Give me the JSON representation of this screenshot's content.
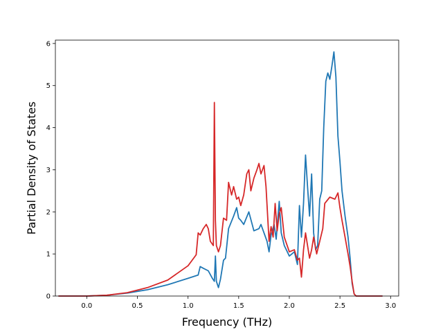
{
  "chart_data": {
    "type": "line",
    "title": "",
    "xlabel": "Frequency (THz)",
    "ylabel": "Partial Density of States",
    "xlim": [
      -0.31,
      3.08
    ],
    "ylim": [
      0,
      6.08
    ],
    "xticks": [
      0.0,
      0.5,
      1.0,
      1.5,
      2.0,
      2.5,
      3.0
    ],
    "xtick_labels": [
      "0.0",
      "0.5",
      "1.0",
      "1.5",
      "2.0",
      "2.5",
      "3.0"
    ],
    "yticks": [
      0,
      1,
      2,
      3,
      4,
      5,
      6
    ],
    "ytick_labels": [
      "0",
      "1",
      "2",
      "3",
      "4",
      "5",
      "6"
    ],
    "grid": false,
    "legend": "none",
    "series": [
      {
        "color": "#1f77b4",
        "x": [
          -0.28,
          0.0,
          0.2,
          0.4,
          0.6,
          0.8,
          1.0,
          1.1,
          1.12,
          1.15,
          1.2,
          1.24,
          1.26,
          1.27,
          1.28,
          1.3,
          1.32,
          1.35,
          1.37,
          1.4,
          1.45,
          1.48,
          1.5,
          1.52,
          1.55,
          1.6,
          1.65,
          1.7,
          1.72,
          1.75,
          1.78,
          1.8,
          1.82,
          1.85,
          1.87,
          1.9,
          1.92,
          1.95,
          2.0,
          2.05,
          2.08,
          2.1,
          2.12,
          2.14,
          2.16,
          2.18,
          2.2,
          2.22,
          2.24,
          2.26,
          2.28,
          2.3,
          2.32,
          2.34,
          2.36,
          2.38,
          2.4,
          2.42,
          2.44,
          2.46,
          2.48,
          2.5,
          2.52,
          2.55,
          2.58,
          2.6,
          2.62,
          2.64,
          2.66,
          2.68,
          2.7,
          2.8,
          2.92
        ],
        "values": [
          0,
          0,
          0.02,
          0.07,
          0.15,
          0.27,
          0.42,
          0.5,
          0.7,
          0.66,
          0.6,
          0.42,
          0.35,
          0.95,
          0.35,
          0.2,
          0.4,
          0.85,
          0.9,
          1.6,
          1.9,
          2.1,
          1.85,
          1.8,
          1.7,
          2.0,
          1.55,
          1.6,
          1.7,
          1.5,
          1.3,
          1.05,
          1.45,
          1.7,
          1.35,
          2.25,
          1.5,
          1.2,
          0.95,
          1.05,
          0.75,
          2.15,
          1.4,
          2.2,
          3.35,
          2.6,
          1.9,
          2.9,
          1.5,
          1.1,
          1.2,
          2.3,
          2.5,
          4.0,
          5.1,
          5.3,
          5.15,
          5.45,
          5.8,
          5.2,
          3.8,
          3.2,
          2.5,
          1.9,
          1.4,
          0.9,
          0.3,
          0.05,
          0,
          0,
          0,
          0,
          0
        ]
      },
      {
        "color": "#d62728",
        "x": [
          -0.28,
          0.0,
          0.2,
          0.4,
          0.6,
          0.8,
          1.0,
          1.08,
          1.1,
          1.12,
          1.15,
          1.18,
          1.2,
          1.22,
          1.25,
          1.26,
          1.27,
          1.28,
          1.3,
          1.32,
          1.35,
          1.38,
          1.4,
          1.43,
          1.45,
          1.48,
          1.5,
          1.52,
          1.55,
          1.58,
          1.6,
          1.62,
          1.65,
          1.68,
          1.7,
          1.72,
          1.75,
          1.77,
          1.8,
          1.82,
          1.84,
          1.86,
          1.88,
          1.9,
          1.92,
          1.95,
          2.0,
          2.05,
          2.08,
          2.1,
          2.12,
          2.14,
          2.16,
          2.2,
          2.22,
          2.24,
          2.27,
          2.3,
          2.33,
          2.35,
          2.4,
          2.45,
          2.48,
          2.5,
          2.52,
          2.55,
          2.58,
          2.6,
          2.62,
          2.64,
          2.66,
          2.68,
          2.7,
          2.8,
          2.92
        ],
        "values": [
          0,
          0,
          0.02,
          0.08,
          0.2,
          0.38,
          0.72,
          0.98,
          1.5,
          1.45,
          1.6,
          1.7,
          1.6,
          1.3,
          1.2,
          4.6,
          1.8,
          1.2,
          1.05,
          1.2,
          1.85,
          1.8,
          2.7,
          2.4,
          2.6,
          2.3,
          2.35,
          2.15,
          2.4,
          2.9,
          3.0,
          2.5,
          2.8,
          3.0,
          3.15,
          2.9,
          3.1,
          2.6,
          1.3,
          1.65,
          1.4,
          2.2,
          1.55,
          1.95,
          2.1,
          1.4,
          1.05,
          1.1,
          0.85,
          0.9,
          0.45,
          1.1,
          1.5,
          0.9,
          1.1,
          1.4,
          1.0,
          1.3,
          1.6,
          2.2,
          2.35,
          2.3,
          2.45,
          2.1,
          1.8,
          1.4,
          1.0,
          0.7,
          0.35,
          0.05,
          0,
          0,
          0,
          0,
          0
        ]
      }
    ]
  }
}
